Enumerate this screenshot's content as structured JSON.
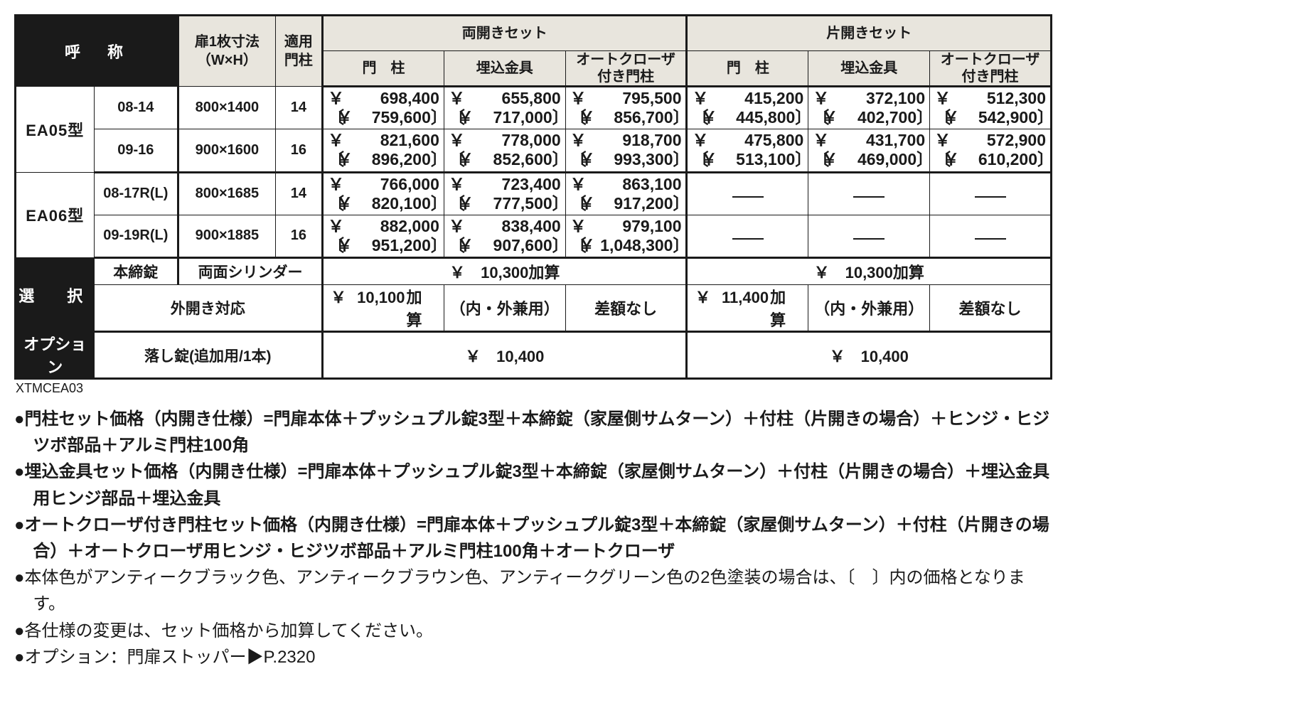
{
  "colors": {
    "ink": "#1a1a1a",
    "paper": "#ffffff",
    "header_grey": "#e8e5dd"
  },
  "fonts": {
    "base_pt": 22,
    "price_pt": 23,
    "notes_pt": 24
  },
  "table": {
    "headers": {
      "name": "呼　称",
      "door_dim": "扉1枚寸法\n（W×H）",
      "pillar": "適用\n門柱",
      "double_set": "両開きセット",
      "single_set": "片開きセット",
      "col_pillar": "門　柱",
      "col_embed": "埋込金具",
      "col_auto": "オートクローザ\n付き門柱"
    },
    "rows": [
      {
        "model": "EA05型",
        "sizes": [
          {
            "code": "08-14",
            "dim": "800×1400",
            "pillar": "14",
            "prices": [
              {
                "a": "698,400",
                "b": "759,600"
              },
              {
                "a": "655,800",
                "b": "717,000"
              },
              {
                "a": "795,500",
                "b": "856,700"
              },
              {
                "a": "415,200",
                "b": "445,800"
              },
              {
                "a": "372,100",
                "b": "402,700"
              },
              {
                "a": "512,300",
                "b": "542,900"
              }
            ]
          },
          {
            "code": "09-16",
            "dim": "900×1600",
            "pillar": "16",
            "prices": [
              {
                "a": "821,600",
                "b": "896,200"
              },
              {
                "a": "778,000",
                "b": "852,600"
              },
              {
                "a": "918,700",
                "b": "993,300"
              },
              {
                "a": "475,800",
                "b": "513,100"
              },
              {
                "a": "431,700",
                "b": "469,000"
              },
              {
                "a": "572,900",
                "b": "610,200"
              }
            ]
          }
        ]
      },
      {
        "model": "EA06型",
        "sizes": [
          {
            "code": "08-17R(L)",
            "dim": "800×1685",
            "pillar": "14",
            "prices": [
              {
                "a": "766,000",
                "b": "820,100"
              },
              {
                "a": "723,400",
                "b": "777,500"
              },
              {
                "a": "863,100",
                "b": "917,200"
              },
              null,
              null,
              null
            ]
          },
          {
            "code": "09-19R(L)",
            "dim": "900×1885",
            "pillar": "16",
            "prices": [
              {
                "a": "882,000",
                "b": "951,200"
              },
              {
                "a": "838,400",
                "b": "907,600"
              },
              {
                "a": "979,100",
                "b": "1,048,300"
              },
              null,
              null,
              null
            ]
          }
        ]
      }
    ],
    "select": {
      "label": "選　択",
      "row1": {
        "lock": "本締錠",
        "cylinder": "両面シリンダー",
        "add_double": "￥　10,300加算",
        "add_single": "￥　10,300加算"
      },
      "row2": {
        "outward": "外開き対応",
        "d_pillar_add": "10,100",
        "d_pillar_suffix": "加算",
        "d_embed": "（内・外兼用）",
        "d_auto": "差額なし",
        "s_pillar_add": "11,400",
        "s_pillar_suffix": "加算",
        "s_embed": "（内・外兼用）",
        "s_auto": "差額なし"
      }
    },
    "option": {
      "label": "オプション",
      "drop_lock": "落し錠(追加用/1本)",
      "price_double": "￥　10,400",
      "price_single": "￥　10,400"
    },
    "code": "XTMCEA03"
  },
  "notes": [
    {
      "bold": true,
      "text": "●門柱セット価格（内開き仕様）=門扉本体＋プッシュプル錠3型＋本締錠（家屋側サムターン）＋付柱（片開きの場合）＋ヒンジ・ヒジツボ部品＋アルミ門柱100角"
    },
    {
      "bold": true,
      "text": "●埋込金具セット価格（内開き仕様）=門扉本体＋プッシュプル錠3型＋本締錠（家屋側サムターン）＋付柱（片開きの場合）＋埋込金具用ヒンジ部品＋埋込金具"
    },
    {
      "bold": true,
      "text": "●オートクローザ付き門柱セット価格（内開き仕様）=門扉本体＋プッシュプル錠3型＋本締錠（家屋側サムターン）＋付柱（片開きの場合）＋オートクローザ用ヒンジ・ヒジツボ部品＋アルミ門柱100角＋オートクローザ"
    },
    {
      "bold": false,
      "text": "●本体色がアンティークブラック色、アンティークブラウン色、アンティークグリーン色の2色塗装の場合は、〔　〕内の価格となります。"
    },
    {
      "bold": false,
      "text": "●各仕様の変更は、セット価格から加算してください。"
    },
    {
      "bold": false,
      "text": "●オプション：門扉ストッパー▶P.2320"
    }
  ]
}
